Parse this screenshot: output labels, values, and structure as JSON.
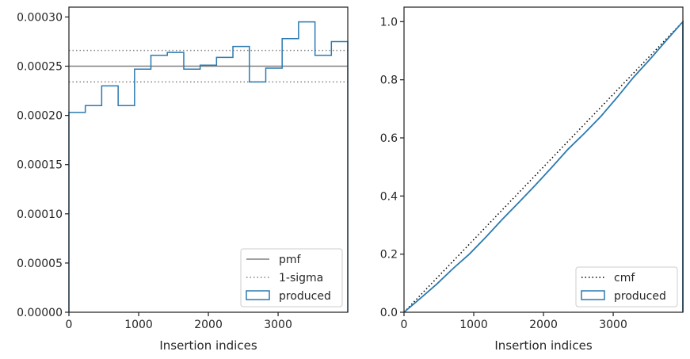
{
  "chart_data": [
    {
      "type": "step",
      "xlabel": "Insertion indices",
      "ylabel": "",
      "xlim": [
        0,
        3999
      ],
      "ylim": [
        0,
        0.00031
      ],
      "x_ticks": [
        0,
        1000,
        2000,
        3000
      ],
      "x_tick_labels": [
        "0",
        "1000",
        "2000",
        "3000"
      ],
      "y_ticks": [
        0,
        5e-05,
        0.0001,
        0.00015,
        0.0002,
        0.00025,
        0.0003
      ],
      "y_tick_labels": [
        "0.00000",
        "0.00005",
        "0.00010",
        "0.00015",
        "0.00020",
        "0.00025",
        "0.00030"
      ],
      "grid": false,
      "legend_position": "lower-right",
      "legend": [
        "pmf",
        "1-sigma",
        "produced"
      ],
      "lines": {
        "pmf": 0.00025,
        "sigma_upper": 0.000266,
        "sigma_lower": 0.000234
      },
      "bin_edges": [
        0,
        235,
        470,
        706,
        941,
        1176,
        1411,
        1647,
        1882,
        2117,
        2352,
        2588,
        2823,
        3058,
        3293,
        3529,
        3764,
        3999
      ],
      "values": [
        0.000203,
        0.00021,
        0.00023,
        0.00021,
        0.000247,
        0.000261,
        0.000264,
        0.000247,
        0.000251,
        0.000259,
        0.00027,
        0.000234,
        0.000248,
        0.000278,
        0.000295,
        0.000261,
        0.000275
      ],
      "colors": {
        "pmf": "#808080",
        "sigma": "#808080",
        "produced": "#2a7ab0"
      }
    },
    {
      "type": "line",
      "xlabel": "Insertion indices",
      "ylabel": "",
      "xlim": [
        0,
        3999
      ],
      "ylim": [
        0,
        1.05
      ],
      "x_ticks": [
        0,
        1000,
        2000,
        3000
      ],
      "x_tick_labels": [
        "0",
        "1000",
        "2000",
        "3000"
      ],
      "y_ticks": [
        0,
        0.2,
        0.4,
        0.6,
        0.8,
        1.0
      ],
      "y_tick_labels": [
        "0.0",
        "0.2",
        "0.4",
        "0.6",
        "0.8",
        "1.0"
      ],
      "grid": false,
      "legend_position": "lower-right",
      "legend": [
        "cmf",
        "produced"
      ],
      "cmf": {
        "x": [
          0,
          3999
        ],
        "y": [
          0,
          1
        ]
      },
      "produced": {
        "x": [
          0,
          235,
          470,
          706,
          941,
          1176,
          1411,
          1647,
          1882,
          2117,
          2352,
          2588,
          2823,
          3058,
          3293,
          3529,
          3764,
          3999
        ],
        "y": [
          0,
          0.048,
          0.097,
          0.151,
          0.201,
          0.259,
          0.32,
          0.378,
          0.437,
          0.498,
          0.561,
          0.616,
          0.674,
          0.74,
          0.809,
          0.871,
          0.936,
          1.0
        ]
      },
      "colors": {
        "cmf": "#000000",
        "produced": "#2a7ab0"
      }
    }
  ]
}
